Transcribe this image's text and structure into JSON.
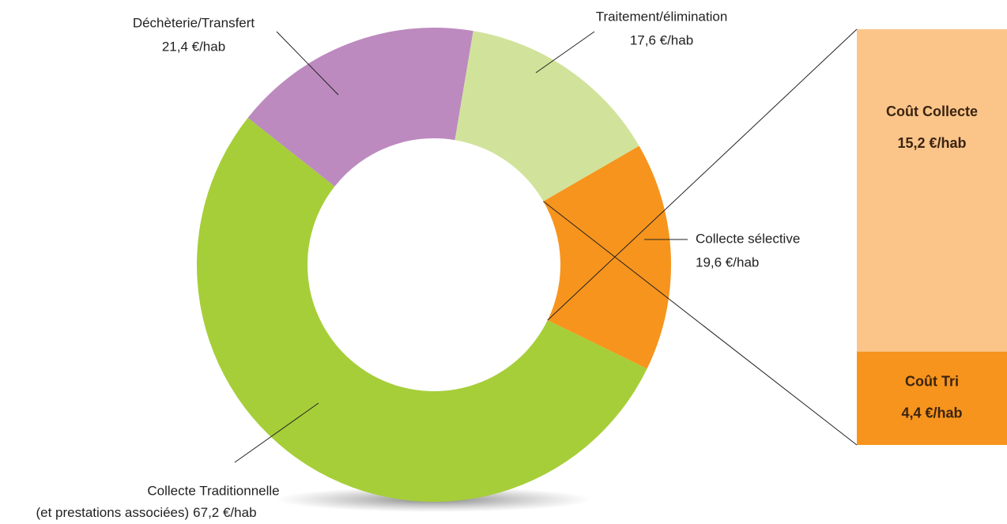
{
  "chart_data": {
    "type": "doughnut",
    "categories": [
      "Collecte Traditionnelle",
      "Déchèterie/Transfert",
      "Traitement/élimination",
      "Collecte sélective"
    ],
    "category_note": "(et prestations associées)",
    "values": [
      67.2,
      21.4,
      17.6,
      19.6
    ],
    "value_labels": [
      "67,2 €/hab",
      "21,4 €/hab",
      "17,6 €/hab",
      "19,6 €/hab"
    ],
    "colors": [
      "#a6ce39",
      "#bc8abf",
      "#d1e39b",
      "#f7941d"
    ],
    "breakout": {
      "categories": [
        "Coût Collecte",
        "Coût Tri"
      ],
      "values": [
        15.2,
        4.4
      ],
      "value_labels": [
        "15,2 €/hab",
        "4,4 €/hab"
      ],
      "colors": [
        "#fbc58a",
        "#f7941d"
      ]
    }
  }
}
